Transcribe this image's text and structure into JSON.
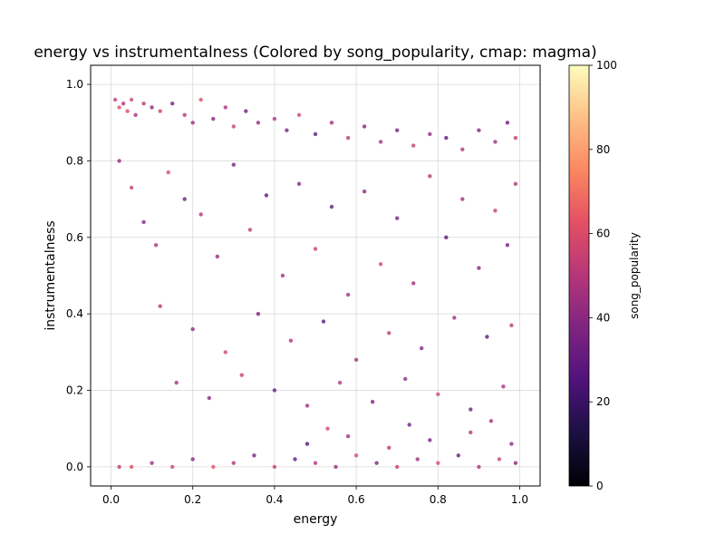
{
  "chart_data": {
    "type": "scatter",
    "title": "energy vs instrumentalness (Colored by song_popularity, cmap: magma)",
    "xlabel": "energy",
    "ylabel": "instrumentalness",
    "xlim": [
      -0.05,
      1.05
    ],
    "ylim": [
      -0.05,
      1.05
    ],
    "xticks": [
      "0.0",
      "0.2",
      "0.4",
      "0.6",
      "0.8",
      "1.0"
    ],
    "yticks": [
      "0.0",
      "0.2",
      "0.4",
      "0.6",
      "0.8",
      "1.0"
    ],
    "grid": true,
    "colorbar": {
      "label": "song_popularity",
      "cmap": "magma",
      "range": [
        0,
        100
      ],
      "ticks": [
        "0",
        "20",
        "40",
        "60",
        "80",
        "100"
      ]
    },
    "points": [
      [
        0.01,
        0.96,
        55
      ],
      [
        0.02,
        0.94,
        62
      ],
      [
        0.03,
        0.95,
        48
      ],
      [
        0.04,
        0.93,
        60
      ],
      [
        0.05,
        0.96,
        58
      ],
      [
        0.06,
        0.92,
        45
      ],
      [
        0.08,
        0.95,
        52
      ],
      [
        0.1,
        0.94,
        40
      ],
      [
        0.12,
        0.93,
        57
      ],
      [
        0.15,
        0.95,
        35
      ],
      [
        0.18,
        0.92,
        50
      ],
      [
        0.2,
        0.9,
        44
      ],
      [
        0.22,
        0.96,
        61
      ],
      [
        0.25,
        0.91,
        38
      ],
      [
        0.28,
        0.94,
        47
      ],
      [
        0.3,
        0.89,
        55
      ],
      [
        0.33,
        0.93,
        33
      ],
      [
        0.36,
        0.9,
        42
      ],
      [
        0.4,
        0.91,
        49
      ],
      [
        0.43,
        0.88,
        36
      ],
      [
        0.46,
        0.92,
        58
      ],
      [
        0.5,
        0.87,
        30
      ],
      [
        0.54,
        0.9,
        45
      ],
      [
        0.58,
        0.86,
        52
      ],
      [
        0.62,
        0.89,
        39
      ],
      [
        0.66,
        0.85,
        47
      ],
      [
        0.7,
        0.88,
        34
      ],
      [
        0.74,
        0.84,
        55
      ],
      [
        0.78,
        0.87,
        41
      ],
      [
        0.82,
        0.86,
        29
      ],
      [
        0.86,
        0.83,
        50
      ],
      [
        0.9,
        0.88,
        37
      ],
      [
        0.94,
        0.85,
        44
      ],
      [
        0.97,
        0.9,
        32
      ],
      [
        0.99,
        0.86,
        53
      ],
      [
        0.02,
        0.8,
        42
      ],
      [
        0.05,
        0.73,
        55
      ],
      [
        0.08,
        0.64,
        38
      ],
      [
        0.11,
        0.58,
        47
      ],
      [
        0.14,
        0.77,
        60
      ],
      [
        0.18,
        0.7,
        33
      ],
      [
        0.22,
        0.66,
        49
      ],
      [
        0.26,
        0.55,
        41
      ],
      [
        0.3,
        0.79,
        36
      ],
      [
        0.34,
        0.62,
        52
      ],
      [
        0.38,
        0.71,
        28
      ],
      [
        0.42,
        0.5,
        45
      ],
      [
        0.46,
        0.74,
        39
      ],
      [
        0.5,
        0.57,
        55
      ],
      [
        0.54,
        0.68,
        31
      ],
      [
        0.58,
        0.45,
        47
      ],
      [
        0.62,
        0.72,
        40
      ],
      [
        0.66,
        0.53,
        58
      ],
      [
        0.7,
        0.65,
        35
      ],
      [
        0.74,
        0.48,
        44
      ],
      [
        0.78,
        0.76,
        50
      ],
      [
        0.82,
        0.6,
        27
      ],
      [
        0.86,
        0.7,
        46
      ],
      [
        0.9,
        0.52,
        38
      ],
      [
        0.94,
        0.67,
        54
      ],
      [
        0.97,
        0.58,
        33
      ],
      [
        0.99,
        0.74,
        48
      ],
      [
        0.12,
        0.42,
        51
      ],
      [
        0.2,
        0.36,
        43
      ],
      [
        0.28,
        0.3,
        57
      ],
      [
        0.36,
        0.4,
        35
      ],
      [
        0.44,
        0.33,
        49
      ],
      [
        0.52,
        0.38,
        30
      ],
      [
        0.6,
        0.28,
        46
      ],
      [
        0.68,
        0.35,
        53
      ],
      [
        0.76,
        0.31,
        38
      ],
      [
        0.84,
        0.39,
        44
      ],
      [
        0.92,
        0.34,
        29
      ],
      [
        0.98,
        0.37,
        51
      ],
      [
        0.16,
        0.22,
        47
      ],
      [
        0.24,
        0.18,
        39
      ],
      [
        0.32,
        0.24,
        55
      ],
      [
        0.4,
        0.2,
        31
      ],
      [
        0.48,
        0.16,
        45
      ],
      [
        0.56,
        0.22,
        50
      ],
      [
        0.64,
        0.17,
        36
      ],
      [
        0.72,
        0.23,
        42
      ],
      [
        0.8,
        0.19,
        58
      ],
      [
        0.88,
        0.15,
        33
      ],
      [
        0.96,
        0.21,
        47
      ],
      [
        0.02,
        0.0,
        52
      ],
      [
        0.05,
        0.0,
        60
      ],
      [
        0.1,
        0.01,
        45
      ],
      [
        0.15,
        0.0,
        57
      ],
      [
        0.2,
        0.02,
        40
      ],
      [
        0.25,
        0.0,
        62
      ],
      [
        0.3,
        0.01,
        48
      ],
      [
        0.35,
        0.03,
        35
      ],
      [
        0.4,
        0.0,
        55
      ],
      [
        0.45,
        0.02,
        30
      ],
      [
        0.5,
        0.01,
        50
      ],
      [
        0.55,
        0.0,
        42
      ],
      [
        0.6,
        0.03,
        58
      ],
      [
        0.65,
        0.01,
        37
      ],
      [
        0.7,
        0.0,
        53
      ],
      [
        0.75,
        0.02,
        44
      ],
      [
        0.8,
        0.01,
        60
      ],
      [
        0.85,
        0.03,
        32
      ],
      [
        0.9,
        0.0,
        48
      ],
      [
        0.95,
        0.02,
        55
      ],
      [
        0.99,
        0.01,
        39
      ],
      [
        0.48,
        0.06,
        27
      ],
      [
        0.58,
        0.08,
        45
      ],
      [
        0.68,
        0.05,
        52
      ],
      [
        0.78,
        0.07,
        36
      ],
      [
        0.88,
        0.09,
        49
      ],
      [
        0.98,
        0.06,
        41
      ],
      [
        0.53,
        0.1,
        58
      ],
      [
        0.73,
        0.11,
        33
      ],
      [
        0.93,
        0.12,
        47
      ]
    ]
  }
}
